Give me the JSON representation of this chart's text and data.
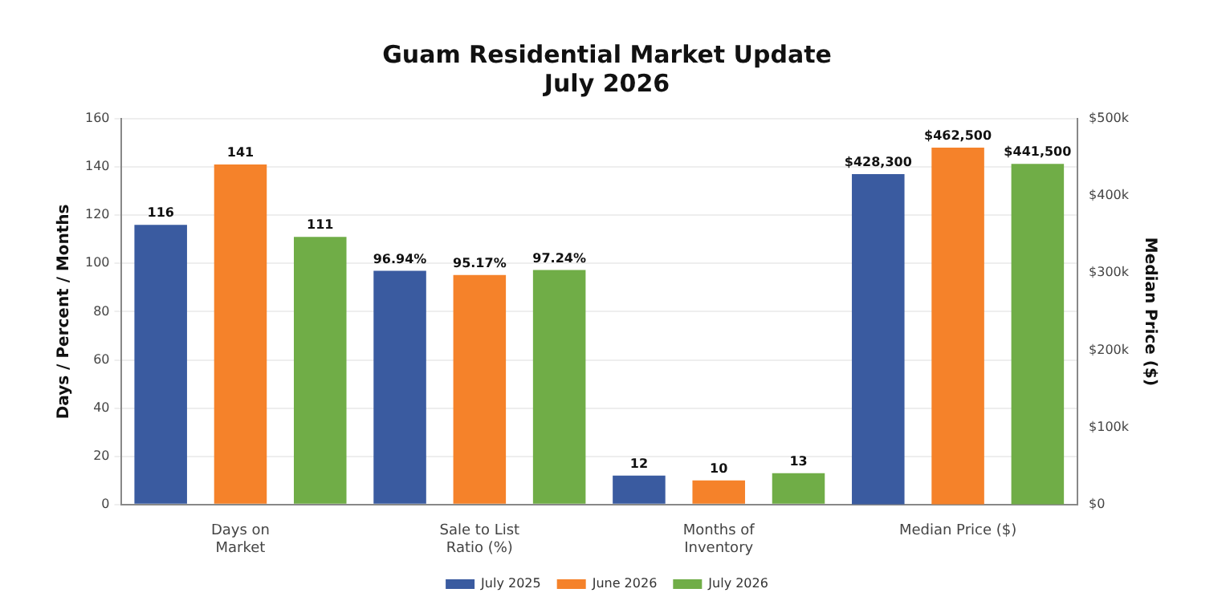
{
  "chart_data": {
    "type": "bar",
    "title": "Guam Residential Market Update",
    "subtitle": "July 2026",
    "ylabel": "Days / Percent / Months",
    "y2label": "Median Price ($)",
    "categories": [
      "Days on\nMarket",
      "Sale to List\nRatio (%)",
      "Months of\nInventory",
      "Median Price ($)"
    ],
    "series": [
      {
        "name": "July 2025",
        "color": "#3a5ba0",
        "values": [
          116,
          96.94,
          12,
          null
        ],
        "value_labels": [
          "116",
          "96.94%",
          "12",
          null
        ]
      },
      {
        "name": "June 2026",
        "color": "#f5822a",
        "values": [
          141,
          95.17,
          10,
          null
        ],
        "value_labels": [
          "141",
          "95.17%",
          "10",
          null
        ]
      },
      {
        "name": "July 2026",
        "color": "#70ad47",
        "values": [
          111,
          97.24,
          13,
          null
        ],
        "value_labels": [
          "111",
          "97.24%",
          "13",
          null
        ]
      },
      {
        "color": "#3a5ba0",
        "axis": "y2",
        "values": [
          null,
          null,
          null,
          428300
        ],
        "value_labels": [
          null,
          null,
          null,
          "$428,300"
        ]
      },
      {
        "color": "#f5822a",
        "axis": "y2",
        "values": [
          null,
          null,
          null,
          462500
        ],
        "value_labels": [
          null,
          null,
          null,
          "$462,500"
        ]
      },
      {
        "color": "#70ad47",
        "axis": "y2",
        "values": [
          null,
          null,
          null,
          441500
        ],
        "value_labels": [
          null,
          null,
          null,
          "$441,500"
        ]
      }
    ],
    "ylim": [
      0,
      160
    ],
    "yticks": [
      0,
      20,
      40,
      60,
      80,
      100,
      120,
      140,
      160
    ],
    "y2lim": [
      0,
      500000
    ],
    "y2ticks": [
      {
        "value": 0,
        "label": "$0"
      },
      {
        "value": 100000,
        "label": "$100k"
      },
      {
        "value": 200000,
        "label": "$200k"
      },
      {
        "value": 300000,
        "label": "$300k"
      },
      {
        "value": 400000,
        "label": "$400k"
      },
      {
        "value": 500000,
        "label": "$500k"
      }
    ],
    "grid": "y",
    "legend": "bottom"
  }
}
